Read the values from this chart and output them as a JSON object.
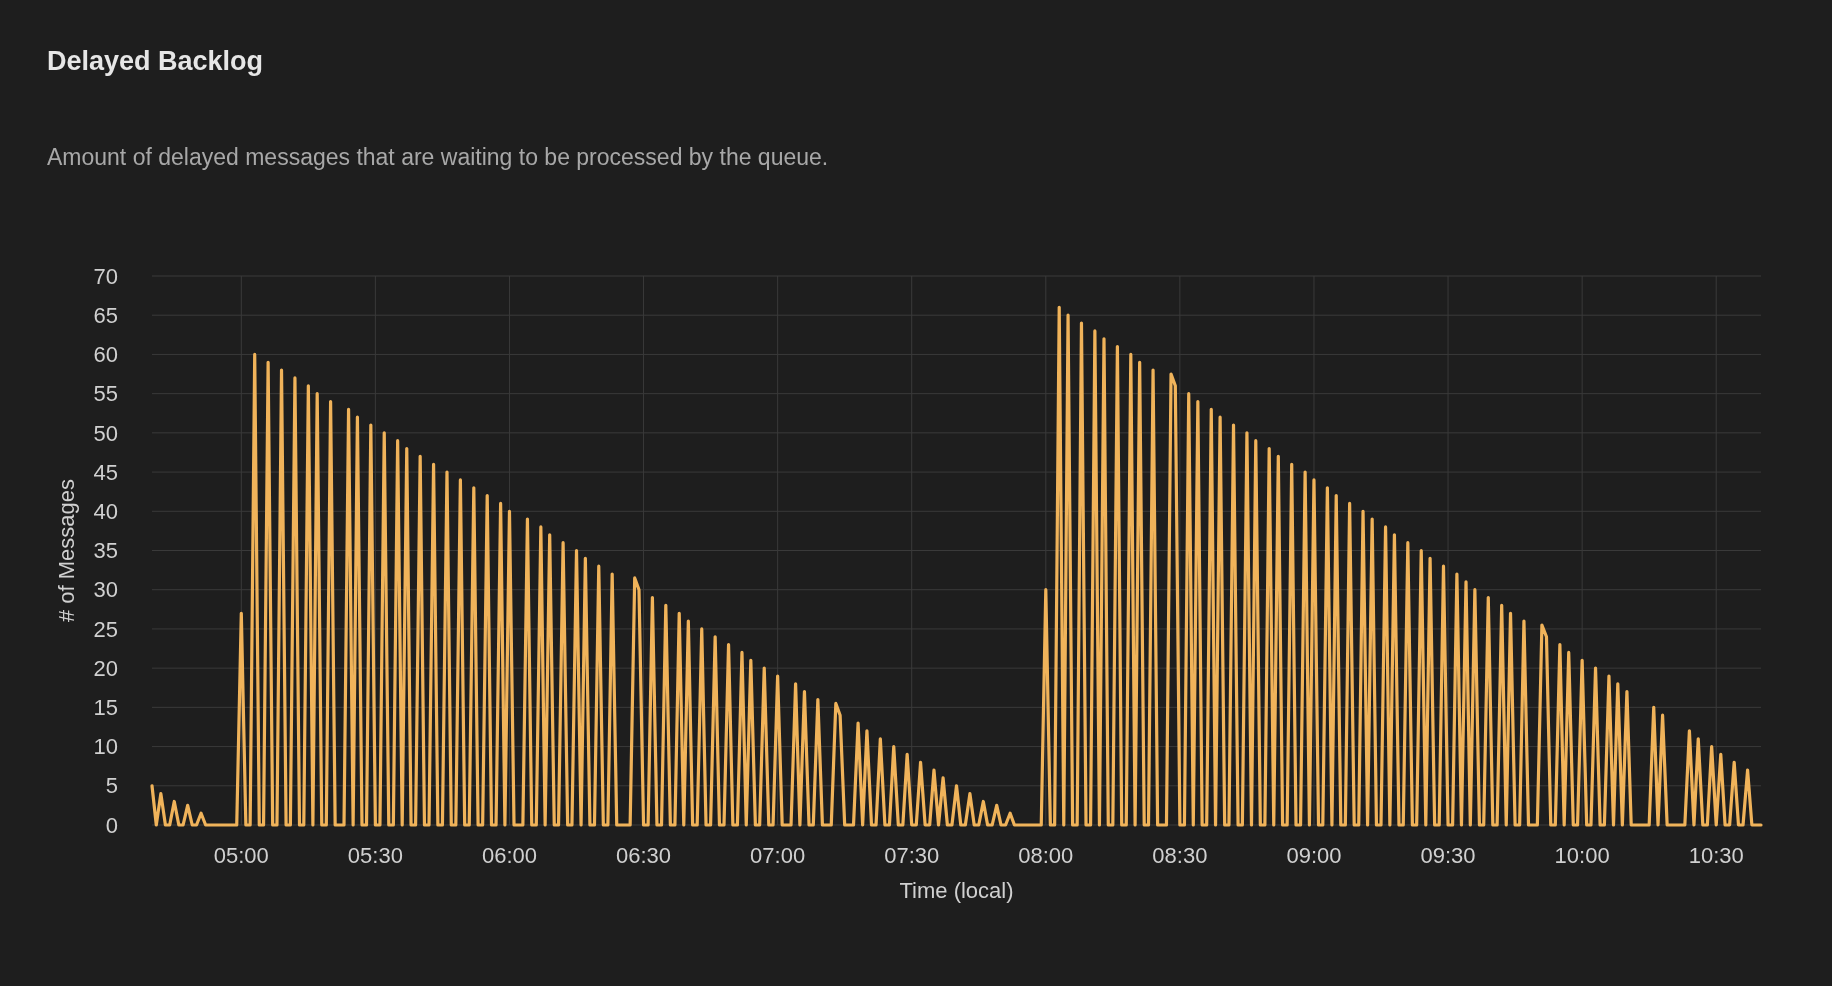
{
  "chart_data": {
    "type": "line",
    "title": "Delayed Backlog",
    "subtitle": "Amount of delayed messages that are waiting to be processed by the queue.",
    "xlabel": "Time (local)",
    "ylabel": "# of Messages",
    "xlim": [
      4.667,
      10.667
    ],
    "xticks": [
      {
        "value": 5,
        "label": "05:00"
      },
      {
        "value": 5.5,
        "label": "05:30"
      },
      {
        "value": 6,
        "label": "06:00"
      },
      {
        "value": 6.5,
        "label": "06:30"
      },
      {
        "value": 7,
        "label": "07:00"
      },
      {
        "value": 7.5,
        "label": "07:30"
      },
      {
        "value": 8,
        "label": "08:00"
      },
      {
        "value": 8.5,
        "label": "08:30"
      },
      {
        "value": 9,
        "label": "09:00"
      },
      {
        "value": 9.5,
        "label": "09:30"
      },
      {
        "value": 10,
        "label": "10:00"
      },
      {
        "value": 10.5,
        "label": "10:30"
      }
    ],
    "ylim": [
      0,
      70
    ],
    "yticks": [
      0,
      5,
      10,
      15,
      20,
      25,
      30,
      35,
      40,
      45,
      50,
      55,
      60,
      65,
      70
    ],
    "grid": true,
    "marker": "none",
    "line_style": "solid",
    "series": [
      {
        "color": "#f0b35a",
        "x": [
          4.667,
          4.683,
          4.7,
          4.717,
          4.733,
          4.75,
          4.767,
          4.783,
          4.8,
          4.817,
          4.833,
          4.85,
          4.867,
          4.983,
          5,
          5.017,
          5.033,
          5.05,
          5.067,
          5.083,
          5.1,
          5.117,
          5.133,
          5.15,
          5.167,
          5.183,
          5.2,
          5.217,
          5.233,
          5.25,
          5.267,
          5.283,
          5.3,
          5.317,
          5.333,
          5.35,
          5.383,
          5.4,
          5.417,
          5.433,
          5.45,
          5.467,
          5.483,
          5.5,
          5.517,
          5.533,
          5.55,
          5.567,
          5.583,
          5.6,
          5.617,
          5.633,
          5.65,
          5.667,
          5.683,
          5.7,
          5.717,
          5.733,
          5.75,
          5.767,
          5.783,
          5.8,
          5.817,
          5.833,
          5.85,
          5.867,
          5.883,
          5.9,
          5.917,
          5.933,
          5.95,
          5.967,
          5.983,
          6,
          6.017,
          6.05,
          6.067,
          6.083,
          6.1,
          6.117,
          6.133,
          6.15,
          6.167,
          6.183,
          6.2,
          6.217,
          6.233,
          6.25,
          6.267,
          6.283,
          6.3,
          6.317,
          6.333,
          6.35,
          6.367,
          6.383,
          6.4,
          6.45,
          6.467,
          6.483,
          6.5,
          6.517,
          6.533,
          6.55,
          6.567,
          6.583,
          6.6,
          6.617,
          6.633,
          6.65,
          6.667,
          6.683,
          6.7,
          6.717,
          6.733,
          6.75,
          6.767,
          6.783,
          6.8,
          6.817,
          6.833,
          6.85,
          6.867,
          6.883,
          6.9,
          6.917,
          6.933,
          6.95,
          6.967,
          6.983,
          7,
          7.017,
          7.05,
          7.067,
          7.083,
          7.1,
          7.117,
          7.133,
          7.15,
          7.167,
          7.2,
          7.217,
          7.233,
          7.25,
          7.283,
          7.3,
          7.317,
          7.333,
          7.35,
          7.367,
          7.383,
          7.4,
          7.417,
          7.433,
          7.45,
          7.467,
          7.483,
          7.5,
          7.517,
          7.533,
          7.55,
          7.567,
          7.583,
          7.6,
          7.617,
          7.633,
          7.65,
          7.667,
          7.683,
          7.7,
          7.717,
          7.733,
          7.75,
          7.767,
          7.783,
          7.8,
          7.817,
          7.833,
          7.85,
          7.867,
          7.883,
          7.983,
          8,
          8.017,
          8.033,
          8.05,
          8.067,
          8.083,
          8.1,
          8.117,
          8.133,
          8.15,
          8.167,
          8.183,
          8.2,
          8.217,
          8.233,
          8.25,
          8.267,
          8.283,
          8.3,
          8.317,
          8.333,
          8.35,
          8.367,
          8.383,
          8.4,
          8.417,
          8.45,
          8.467,
          8.483,
          8.5,
          8.517,
          8.533,
          8.55,
          8.567,
          8.583,
          8.6,
          8.617,
          8.633,
          8.65,
          8.667,
          8.683,
          8.7,
          8.717,
          8.733,
          8.75,
          8.767,
          8.783,
          8.8,
          8.817,
          8.833,
          8.85,
          8.867,
          8.883,
          8.9,
          8.917,
          8.933,
          8.95,
          8.967,
          8.983,
          9,
          9.017,
          9.033,
          9.05,
          9.067,
          9.083,
          9.1,
          9.117,
          9.133,
          9.15,
          9.167,
          9.183,
          9.2,
          9.217,
          9.233,
          9.25,
          9.267,
          9.283,
          9.3,
          9.317,
          9.333,
          9.35,
          9.367,
          9.383,
          9.4,
          9.417,
          9.433,
          9.45,
          9.467,
          9.483,
          9.5,
          9.517,
          9.533,
          9.55,
          9.567,
          9.583,
          9.6,
          9.617,
          9.633,
          9.65,
          9.667,
          9.683,
          9.7,
          9.717,
          9.733,
          9.75,
          9.767,
          9.783,
          9.8,
          9.833,
          9.85,
          9.867,
          9.883,
          9.9,
          9.917,
          9.933,
          9.95,
          9.967,
          9.983,
          10,
          10.017,
          10.033,
          10.05,
          10.067,
          10.083,
          10.1,
          10.117,
          10.133,
          10.15,
          10.167,
          10.183,
          10.25,
          10.267,
          10.283,
          10.3,
          10.317,
          10.383,
          10.4,
          10.417,
          10.433,
          10.45,
          10.467,
          10.483,
          10.5,
          10.517,
          10.533,
          10.55,
          10.567,
          10.583,
          10.6,
          10.617,
          10.633,
          10.667
        ],
        "values": [
          5,
          0,
          4,
          0,
          0,
          3,
          0,
          0,
          2.5,
          0,
          0,
          1.5,
          0,
          0,
          27,
          0,
          0,
          60,
          0,
          0,
          59,
          0,
          0,
          58,
          0,
          0,
          57,
          0,
          0,
          56,
          0,
          55,
          0,
          0,
          54,
          0,
          0,
          53,
          0,
          52,
          0,
          0,
          51,
          0,
          0,
          50,
          0,
          0,
          49,
          0,
          48,
          0,
          0,
          47,
          0,
          0,
          46,
          0,
          0,
          45,
          0,
          0,
          44,
          0,
          0,
          43,
          0,
          0,
          42,
          0,
          0,
          41,
          0,
          40,
          0,
          0,
          39,
          0,
          0,
          38,
          0,
          37,
          0,
          0,
          36,
          0,
          0,
          35,
          0,
          34,
          0,
          0,
          33,
          0,
          0,
          32,
          0,
          0,
          31.5,
          30,
          0,
          0,
          29,
          0,
          0,
          28,
          0,
          0,
          27,
          0,
          26,
          0,
          0,
          25,
          0,
          0,
          24,
          0,
          0,
          23,
          0,
          0,
          22,
          0,
          21,
          0,
          0,
          20,
          0,
          0,
          19,
          0,
          0,
          18,
          0,
          17,
          0,
          0,
          16,
          0,
          0,
          15.5,
          14,
          0,
          0,
          13,
          0,
          12,
          0,
          0,
          11,
          0,
          0,
          10,
          0,
          0,
          9,
          0,
          0,
          8,
          0,
          0,
          7,
          0,
          6,
          0,
          0,
          5,
          0,
          0,
          4,
          0,
          0,
          3,
          0,
          0,
          2.5,
          0,
          0,
          1.5,
          0,
          0,
          30,
          0,
          0,
          66,
          0,
          65,
          0,
          0,
          64,
          0,
          0,
          63,
          0,
          62,
          0,
          0,
          61,
          0,
          0,
          60,
          0,
          59,
          0,
          0,
          58,
          0,
          0,
          57.5,
          56,
          0,
          0,
          55,
          0,
          54,
          0,
          0,
          53,
          0,
          52,
          0,
          0,
          51,
          0,
          0,
          50,
          0,
          49,
          0,
          0,
          48,
          0,
          47,
          0,
          0,
          46,
          0,
          0,
          45,
          0,
          44,
          0,
          0,
          43,
          0,
          42,
          0,
          0,
          41,
          0,
          0,
          40,
          0,
          39,
          0,
          0,
          38,
          0,
          37,
          0,
          0,
          36,
          0,
          0,
          35,
          0,
          34,
          0,
          0,
          33,
          0,
          0,
          32,
          0,
          31,
          0,
          30,
          0,
          0,
          29,
          0,
          0,
          28,
          0,
          27,
          0,
          0,
          26,
          0,
          0,
          25.5,
          24,
          0,
          0,
          23,
          0,
          22,
          0,
          0,
          21,
          0,
          0,
          20,
          0,
          0,
          19,
          0,
          18,
          0,
          17,
          0,
          0,
          15,
          0,
          14,
          0,
          0,
          12,
          0,
          11,
          0,
          0,
          10,
          0,
          9,
          0,
          0,
          8,
          0,
          0,
          7,
          0,
          0
        ]
      }
    ]
  }
}
